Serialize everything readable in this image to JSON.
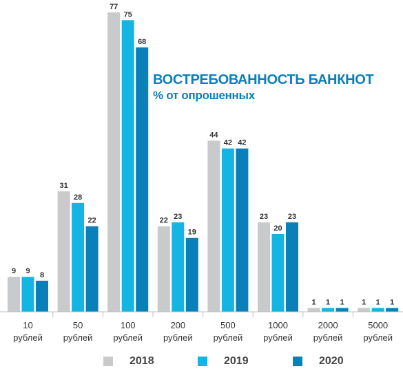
{
  "chart_data": {
    "type": "bar",
    "title": "ВОСТРЕБОВАННОСТЬ БАНКНОТ",
    "subtitle": "% от опрошенных",
    "categories": [
      [
        "10",
        "рублей"
      ],
      [
        "50",
        "рублей"
      ],
      [
        "100",
        "рублей"
      ],
      [
        "200",
        "рублей"
      ],
      [
        "500",
        "рублей"
      ],
      [
        "1000",
        "рублей"
      ],
      [
        "2000",
        "рублей"
      ],
      [
        "5000",
        "рублей"
      ]
    ],
    "series": [
      {
        "name": "2018",
        "color": "#c8cacc",
        "values": [
          9,
          31,
          77,
          22,
          44,
          23,
          1,
          1
        ]
      },
      {
        "name": "2019",
        "color": "#14b5e2",
        "values": [
          9,
          28,
          75,
          23,
          42,
          20,
          1,
          1
        ]
      },
      {
        "name": "2020",
        "color": "#0a80bb",
        "values": [
          8,
          22,
          68,
          19,
          42,
          23,
          1,
          1
        ]
      }
    ],
    "ylim": [
      0,
      77
    ],
    "grid": false,
    "legend_position": "bottom"
  }
}
